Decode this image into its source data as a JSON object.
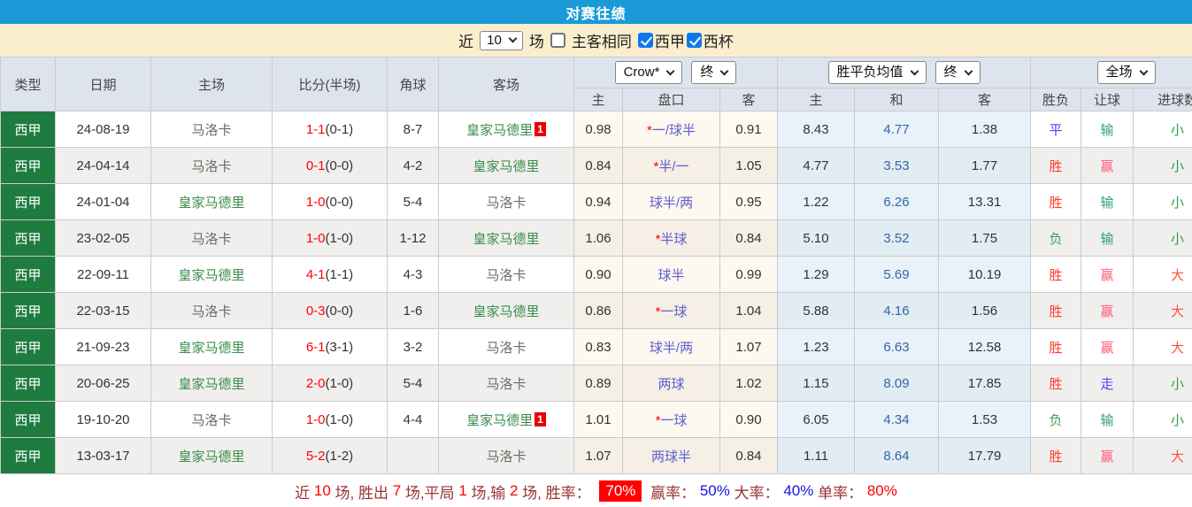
{
  "title": "对赛往绩",
  "controls": {
    "recent_label": "近",
    "recent_count": "10",
    "games_label": "场",
    "same_venue_label": "主客相同",
    "same_venue_checked": false,
    "league1_label": "西甲",
    "league1_checked": true,
    "league2_label": "西杯",
    "league2_checked": true
  },
  "table": {
    "left_columns": [
      "类型",
      "日期",
      "主场",
      "比分(半场)",
      "角球",
      "客场"
    ],
    "sub_columns": [
      "主",
      "盘口",
      "客",
      "主",
      "和",
      "客",
      "胜负",
      "让球",
      "进球数"
    ],
    "dropdowns": {
      "company": "Crow*",
      "company_time": "终",
      "mean": "胜平负均值",
      "mean_time": "终",
      "scope": "全场"
    },
    "team_colors": {
      "皇家马德里": "#3c8d4a",
      "马洛卡": "#6e6a66"
    },
    "value_colors": {
      "胜": "#ff3b30",
      "平": "#4343ff",
      "负": "#3fa05a",
      "赢": "#ff5a73",
      "输": "#2f9e7a",
      "走": "#4646ff",
      "大": "#ff5040",
      "小": "#2fa044"
    },
    "rows": [
      {
        "type": "西甲",
        "date": "24-08-19",
        "home": "马洛卡",
        "score_ft": "1-1",
        "score_ht": "(0-1)",
        "corner": "8-7",
        "away": "皇家马德里",
        "away_badge": "1",
        "odds_home": "0.98",
        "hcap_star": true,
        "handicap": "一/球半",
        "odds_away": "0.91",
        "mean_home": "8.43",
        "mean_draw": "4.77",
        "mean_away": "1.38",
        "result": "平",
        "letgoal": "输",
        "goals": "小"
      },
      {
        "type": "西甲",
        "date": "24-04-14",
        "home": "马洛卡",
        "score_ft": "0-1",
        "score_ht": "(0-0)",
        "corner": "4-2",
        "away": "皇家马德里",
        "away_badge": null,
        "odds_home": "0.84",
        "hcap_star": true,
        "handicap": "半/一",
        "odds_away": "1.05",
        "mean_home": "4.77",
        "mean_draw": "3.53",
        "mean_away": "1.77",
        "result": "胜",
        "letgoal": "赢",
        "goals": "小"
      },
      {
        "type": "西甲",
        "date": "24-01-04",
        "home": "皇家马德里",
        "score_ft": "1-0",
        "score_ht": "(0-0)",
        "corner": "5-4",
        "away": "马洛卡",
        "away_badge": null,
        "odds_home": "0.94",
        "hcap_star": false,
        "handicap": "球半/两",
        "odds_away": "0.95",
        "mean_home": "1.22",
        "mean_draw": "6.26",
        "mean_away": "13.31",
        "result": "胜",
        "letgoal": "输",
        "goals": "小"
      },
      {
        "type": "西甲",
        "date": "23-02-05",
        "home": "马洛卡",
        "score_ft": "1-0",
        "score_ht": "(1-0)",
        "corner": "1-12",
        "away": "皇家马德里",
        "away_badge": null,
        "odds_home": "1.06",
        "hcap_star": true,
        "handicap": "半球",
        "odds_away": "0.84",
        "mean_home": "5.10",
        "mean_draw": "3.52",
        "mean_away": "1.75",
        "result": "负",
        "letgoal": "输",
        "goals": "小"
      },
      {
        "type": "西甲",
        "date": "22-09-11",
        "home": "皇家马德里",
        "score_ft": "4-1",
        "score_ht": "(1-1)",
        "corner": "4-3",
        "away": "马洛卡",
        "away_badge": null,
        "odds_home": "0.90",
        "hcap_star": false,
        "handicap": "球半",
        "odds_away": "0.99",
        "mean_home": "1.29",
        "mean_draw": "5.69",
        "mean_away": "10.19",
        "result": "胜",
        "letgoal": "赢",
        "goals": "大"
      },
      {
        "type": "西甲",
        "date": "22-03-15",
        "home": "马洛卡",
        "score_ft": "0-3",
        "score_ht": "(0-0)",
        "corner": "1-6",
        "away": "皇家马德里",
        "away_badge": null,
        "odds_home": "0.86",
        "hcap_star": true,
        "handicap": "一球",
        "odds_away": "1.04",
        "mean_home": "5.88",
        "mean_draw": "4.16",
        "mean_away": "1.56",
        "result": "胜",
        "letgoal": "赢",
        "goals": "大"
      },
      {
        "type": "西甲",
        "date": "21-09-23",
        "home": "皇家马德里",
        "score_ft": "6-1",
        "score_ht": "(3-1)",
        "corner": "3-2",
        "away": "马洛卡",
        "away_badge": null,
        "odds_home": "0.83",
        "hcap_star": false,
        "handicap": "球半/两",
        "odds_away": "1.07",
        "mean_home": "1.23",
        "mean_draw": "6.63",
        "mean_away": "12.58",
        "result": "胜",
        "letgoal": "赢",
        "goals": "大"
      },
      {
        "type": "西甲",
        "date": "20-06-25",
        "home": "皇家马德里",
        "score_ft": "2-0",
        "score_ht": "(1-0)",
        "corner": "5-4",
        "away": "马洛卡",
        "away_badge": null,
        "odds_home": "0.89",
        "hcap_star": false,
        "handicap": "两球",
        "odds_away": "1.02",
        "mean_home": "1.15",
        "mean_draw": "8.09",
        "mean_away": "17.85",
        "result": "胜",
        "letgoal": "走",
        "goals": "小"
      },
      {
        "type": "西甲",
        "date": "19-10-20",
        "home": "马洛卡",
        "score_ft": "1-0",
        "score_ht": "(1-0)",
        "corner": "4-4",
        "away": "皇家马德里",
        "away_badge": "1",
        "odds_home": "1.01",
        "hcap_star": true,
        "handicap": "一球",
        "odds_away": "0.90",
        "mean_home": "6.05",
        "mean_draw": "4.34",
        "mean_away": "1.53",
        "result": "负",
        "letgoal": "输",
        "goals": "小"
      },
      {
        "type": "西甲",
        "date": "13-03-17",
        "home": "皇家马德里",
        "score_ft": "5-2",
        "score_ht": "(1-2)",
        "corner": "",
        "away": "马洛卡",
        "away_badge": null,
        "odds_home": "1.07",
        "hcap_star": false,
        "handicap": "两球半",
        "odds_away": "0.84",
        "mean_home": "1.11",
        "mean_draw": "8.64",
        "mean_away": "17.79",
        "result": "胜",
        "letgoal": "赢",
        "goals": "大"
      }
    ]
  },
  "footer": {
    "segments": [
      {
        "t": "近 ",
        "c": "label"
      },
      {
        "t": "10",
        "c": "num"
      },
      {
        "t": " 场, 胜出 ",
        "c": "label"
      },
      {
        "t": "7",
        "c": "num"
      },
      {
        "t": " 场,平局 ",
        "c": "label"
      },
      {
        "t": "1",
        "c": "num"
      },
      {
        "t": " 场,输 ",
        "c": "label"
      },
      {
        "t": "2",
        "c": "num"
      },
      {
        "t": " 场, 胜率： ",
        "c": "label"
      },
      {
        "t": "70%",
        "c": "badge"
      },
      {
        "t": " 赢率： ",
        "c": "label"
      },
      {
        "t": "50%",
        "c": "blue"
      },
      {
        "t": " 大率： ",
        "c": "label"
      },
      {
        "t": "40%",
        "c": "blue"
      },
      {
        "t": " 单率： ",
        "c": "label"
      },
      {
        "t": "80%",
        "c": "red"
      }
    ]
  },
  "colors": {
    "title_bar": "#1a9bd7",
    "control_bar": "#fbeecd",
    "header_bg": "#dee4ed",
    "type_green": "#1d7c3e",
    "score_red": "#ff0000",
    "handicap_blue": "#5e5ecf",
    "mean_draw_blue": "#3465a8",
    "badge_red": "#e60000"
  }
}
